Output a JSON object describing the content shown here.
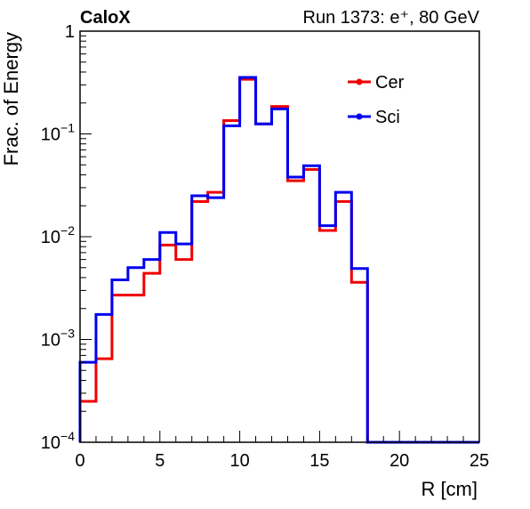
{
  "header": {
    "experiment_label": "CaloX",
    "run_info": "Run 1373: e⁺, 80 GeV"
  },
  "chart_data": {
    "type": "line",
    "style": "step-histogram",
    "xlabel": "R [cm]",
    "ylabel": "Frac. of Energy",
    "xlim": [
      0,
      25
    ],
    "ylim": [
      0.0001,
      1
    ],
    "yscale": "log",
    "grid": false,
    "legend_position": "top-right",
    "x_ticks": [
      "0",
      "5",
      "10",
      "15",
      "20",
      "25"
    ],
    "y_ticks": [
      {
        "base": "10",
        "exp": "−4"
      },
      {
        "base": "10",
        "exp": "−3"
      },
      {
        "base": "10",
        "exp": "−2"
      },
      {
        "base": "10",
        "exp": "−1"
      },
      {
        "base": "1",
        "exp": ""
      }
    ],
    "bin_edges": [
      0,
      1,
      2,
      3,
      4,
      5,
      6,
      7,
      8,
      9,
      10,
      11,
      12,
      13,
      14,
      15,
      16,
      17,
      18,
      19,
      20,
      21,
      22,
      23,
      24,
      25
    ],
    "series": [
      {
        "name": "Cer",
        "color": "#ee0000",
        "values": [
          0.00025,
          0.00065,
          0.0027,
          0.0027,
          0.0044,
          0.0083,
          0.006,
          0.022,
          0.027,
          0.135,
          0.34,
          0.125,
          0.185,
          0.035,
          0.045,
          0.0115,
          0.022,
          0.0036,
          0,
          0,
          0,
          0,
          0,
          0,
          0
        ]
      },
      {
        "name": "Sci",
        "color": "#0000ee",
        "values": [
          0.0006,
          0.00175,
          0.0038,
          0.005,
          0.006,
          0.011,
          0.0085,
          0.025,
          0.024,
          0.12,
          0.355,
          0.125,
          0.175,
          0.038,
          0.049,
          0.0128,
          0.027,
          0.0049,
          0,
          0,
          0,
          0,
          0,
          0,
          0
        ]
      }
    ]
  }
}
